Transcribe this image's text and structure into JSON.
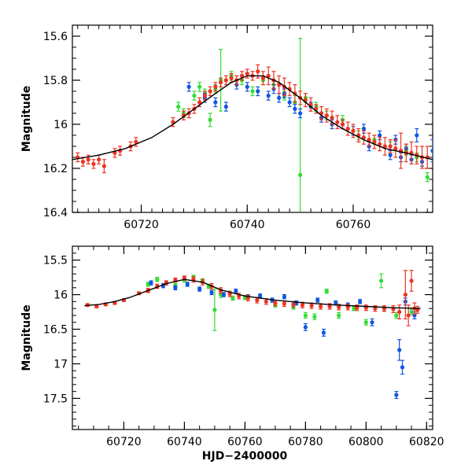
{
  "chart_data": [
    {
      "type": "scatter",
      "panel": "top",
      "xlabel": "",
      "ylabel": "Magnitude",
      "xlim": [
        60707,
        60775
      ],
      "ylim": [
        16.4,
        15.55
      ],
      "y_inverted": true,
      "xticks": [
        60720,
        60740,
        60760
      ],
      "xtick_labels": [
        "60720",
        "60740",
        "60760"
      ],
      "yticks": [
        15.6,
        15.8,
        16.0,
        16.2,
        16.4
      ],
      "ytick_labels": [
        "15.6",
        "15.8",
        "16",
        "16.2",
        "16.4"
      ],
      "colors": {
        "green": "#33dd33",
        "blue": "#1155dd",
        "red": "#ee3322",
        "model": "#000000"
      },
      "model_curve": {
        "x": [
          60707,
          60712,
          60717,
          60722,
          60726,
          60730,
          60734,
          60737,
          60740,
          60743,
          60746,
          60750,
          60754,
          60758,
          60762,
          60766,
          60770,
          60775
        ],
        "y": [
          16.16,
          16.14,
          16.11,
          16.06,
          16.0,
          15.93,
          15.86,
          15.81,
          15.78,
          15.78,
          15.81,
          15.88,
          15.96,
          16.02,
          16.07,
          16.11,
          16.13,
          16.16
        ]
      },
      "series": [
        {
          "color": "green",
          "x": [
            60727,
            60728,
            60730,
            60731,
            60732,
            60733,
            60734,
            60735,
            60737,
            60738,
            60739,
            60741,
            60743,
            60745,
            60747,
            60749,
            60750,
            60751,
            60753,
            60755,
            60758,
            60761,
            60764,
            60767,
            60770,
            60772,
            60774
          ],
          "y": [
            15.92,
            15.95,
            15.87,
            15.83,
            15.86,
            15.98,
            15.84,
            15.8,
            15.78,
            15.8,
            15.8,
            15.85,
            15.8,
            15.82,
            15.87,
            15.9,
            16.23,
            15.88,
            15.92,
            15.96,
            15.98,
            16.05,
            16.07,
            16.1,
            16.12,
            16.15,
            16.24
          ],
          "yerr": [
            0.02,
            0.02,
            0.02,
            0.02,
            0.02,
            0.03,
            0.02,
            0.14,
            0.02,
            0.02,
            0.02,
            0.02,
            0.02,
            0.02,
            0.02,
            0.03,
            0.62,
            0.02,
            0.02,
            0.02,
            0.02,
            0.02,
            0.02,
            0.02,
            0.02,
            0.02,
            0.02
          ]
        },
        {
          "color": "blue",
          "x": [
            60729,
            60732,
            60734,
            60736,
            60738,
            60740,
            60742,
            60744,
            60745,
            60746,
            60747,
            60748,
            60749,
            60750,
            60752,
            60754,
            60756,
            60758,
            60760,
            60762,
            60763,
            60765,
            60767,
            60768,
            60769,
            60770,
            60771,
            60772,
            60773,
            60775
          ],
          "y": [
            15.83,
            15.88,
            15.9,
            15.92,
            15.82,
            15.83,
            15.85,
            15.87,
            15.84,
            15.88,
            15.86,
            15.9,
            15.93,
            15.95,
            15.92,
            15.97,
            16.0,
            16.0,
            16.03,
            16.02,
            16.1,
            16.05,
            16.14,
            16.07,
            16.15,
            16.11,
            16.16,
            16.05,
            16.17,
            16.12
          ],
          "yerr": [
            0.02,
            0.02,
            0.02,
            0.02,
            0.02,
            0.02,
            0.02,
            0.02,
            0.02,
            0.02,
            0.02,
            0.02,
            0.02,
            0.02,
            0.02,
            0.02,
            0.02,
            0.02,
            0.02,
            0.02,
            0.02,
            0.02,
            0.02,
            0.02,
            0.02,
            0.02,
            0.02,
            0.03,
            0.02,
            0.05
          ]
        },
        {
          "color": "red",
          "x": [
            60708,
            60709,
            60710,
            60711,
            60712,
            60713,
            60715,
            60716,
            60718,
            60719,
            60726,
            60728,
            60729,
            60730,
            60731,
            60732,
            60733,
            60734,
            60735,
            60736,
            60737,
            60738,
            60739,
            60740,
            60741,
            60742,
            60743,
            60744,
            60745,
            60746,
            60747,
            60748,
            60749,
            60750,
            60751,
            60752,
            60753,
            60754,
            60755,
            60756,
            60757,
            60758,
            60759,
            60760,
            60761,
            60762,
            60763,
            60764,
            60765,
            60766,
            60767,
            60768,
            60769,
            60770,
            60771,
            60772,
            60773,
            60774
          ],
          "y": [
            16.15,
            16.17,
            16.16,
            16.18,
            16.16,
            16.19,
            16.13,
            16.12,
            16.1,
            16.08,
            15.99,
            15.96,
            15.95,
            15.93,
            15.9,
            15.87,
            15.85,
            15.83,
            15.81,
            15.8,
            15.79,
            15.8,
            15.78,
            15.77,
            15.78,
            15.76,
            15.79,
            15.78,
            15.8,
            15.82,
            15.83,
            15.84,
            15.86,
            15.88,
            15.89,
            15.91,
            15.93,
            15.95,
            15.96,
            15.97,
            15.99,
            16.0,
            16.02,
            16.03,
            16.05,
            16.06,
            16.07,
            16.08,
            16.09,
            16.1,
            16.1,
            16.11,
            16.12,
            16.13,
            16.13,
            16.14,
            16.15,
            16.15
          ],
          "yerr": [
            0.02,
            0.02,
            0.02,
            0.02,
            0.02,
            0.03,
            0.02,
            0.02,
            0.02,
            0.02,
            0.02,
            0.02,
            0.02,
            0.02,
            0.02,
            0.02,
            0.02,
            0.02,
            0.02,
            0.02,
            0.02,
            0.02,
            0.02,
            0.02,
            0.02,
            0.03,
            0.03,
            0.04,
            0.04,
            0.04,
            0.04,
            0.03,
            0.04,
            0.03,
            0.03,
            0.03,
            0.02,
            0.03,
            0.03,
            0.03,
            0.03,
            0.02,
            0.03,
            0.03,
            0.03,
            0.03,
            0.03,
            0.03,
            0.03,
            0.04,
            0.03,
            0.04,
            0.08,
            0.04,
            0.05,
            0.04,
            0.05,
            0.05
          ]
        }
      ]
    },
    {
      "type": "scatter",
      "panel": "bottom",
      "xlabel": "HJD−2400000",
      "ylabel": "Magnitude",
      "xlim": [
        60703,
        60822
      ],
      "ylim": [
        17.95,
        15.3
      ],
      "y_inverted": true,
      "xticks": [
        60720,
        60740,
        60760,
        60780,
        60800,
        60820
      ],
      "xtick_labels": [
        "60720",
        "60740",
        "60760",
        "60780",
        "60800",
        "60820"
      ],
      "yticks": [
        15.5,
        16.0,
        16.5,
        17.0,
        17.5
      ],
      "ytick_labels": [
        "15.5",
        "16",
        "16.5",
        "17",
        "17.5"
      ],
      "colors": {
        "green": "#33dd33",
        "blue": "#1155dd",
        "red": "#ee3322",
        "model": "#000000"
      },
      "model_curve": {
        "x": [
          60707,
          60712,
          60717,
          60722,
          60728,
          60734,
          60740,
          60746,
          60752,
          60760,
          60770,
          60780,
          60790,
          60800,
          60810,
          60818
        ],
        "y": [
          16.16,
          16.14,
          16.1,
          16.04,
          15.94,
          15.84,
          15.78,
          15.82,
          15.93,
          16.02,
          16.08,
          16.12,
          16.15,
          16.17,
          16.19,
          16.2
        ]
      },
      "series": [
        {
          "color": "green",
          "x": [
            60728,
            60731,
            60734,
            60737,
            60740,
            60743,
            60746,
            60748,
            60750,
            60752,
            60756,
            60760,
            60765,
            60770,
            60776,
            60780,
            60783,
            60787,
            60791,
            60796,
            60800,
            60805,
            60810,
            60815
          ],
          "y": [
            15.85,
            15.78,
            15.83,
            15.87,
            15.79,
            15.75,
            15.8,
            15.88,
            16.22,
            16.0,
            16.05,
            16.04,
            16.02,
            16.15,
            16.18,
            16.3,
            16.32,
            15.95,
            16.3,
            16.2,
            16.4,
            15.8,
            16.3,
            16.25
          ],
          "yerr": [
            0.03,
            0.03,
            0.03,
            0.03,
            0.03,
            0.03,
            0.03,
            0.03,
            0.3,
            0.04,
            0.03,
            0.03,
            0.03,
            0.03,
            0.03,
            0.04,
            0.04,
            0.03,
            0.04,
            0.03,
            0.04,
            0.1,
            0.04,
            0.04
          ]
        },
        {
          "color": "blue",
          "x": [
            60729,
            60733,
            60737,
            60741,
            60745,
            60749,
            60753,
            60757,
            60761,
            60765,
            60769,
            60773,
            60777,
            60780,
            60784,
            60786,
            60790,
            60794,
            60798,
            60802,
            60806,
            60810,
            60811,
            60812,
            60813,
            60816
          ],
          "y": [
            15.83,
            15.87,
            15.9,
            15.85,
            15.92,
            15.97,
            16.0,
            15.95,
            16.03,
            16.02,
            16.08,
            16.03,
            16.12,
            16.47,
            16.08,
            16.55,
            16.12,
            16.15,
            16.1,
            16.4,
            16.2,
            17.45,
            16.8,
            17.05,
            16.1,
            16.3
          ],
          "yerr": [
            0.03,
            0.03,
            0.03,
            0.03,
            0.03,
            0.03,
            0.03,
            0.03,
            0.03,
            0.03,
            0.03,
            0.03,
            0.03,
            0.05,
            0.03,
            0.05,
            0.03,
            0.03,
            0.03,
            0.05,
            0.04,
            0.05,
            0.15,
            0.1,
            0.05,
            0.05
          ]
        },
        {
          "color": "red",
          "x": [
            60708,
            60711,
            60714,
            60717,
            60720,
            60725,
            60728,
            60731,
            60734,
            60737,
            60740,
            60743,
            60746,
            60749,
            60752,
            60755,
            60758,
            60761,
            60764,
            60767,
            60770,
            60773,
            60776,
            60779,
            60782,
            60785,
            60788,
            60791,
            60794,
            60797,
            60800,
            60803,
            60806,
            60809,
            60811,
            60813,
            60814,
            60815,
            60816,
            60817
          ],
          "y": [
            16.15,
            16.17,
            16.14,
            16.12,
            16.08,
            15.98,
            15.94,
            15.88,
            15.83,
            15.79,
            15.76,
            15.78,
            15.82,
            15.88,
            15.94,
            15.99,
            16.02,
            16.05,
            16.08,
            16.1,
            16.12,
            16.13,
            16.14,
            16.15,
            16.16,
            16.17,
            16.17,
            16.18,
            16.18,
            16.19,
            16.19,
            16.2,
            16.2,
            16.21,
            16.25,
            16.0,
            16.3,
            15.8,
            16.2,
            16.22
          ],
          "yerr": [
            0.02,
            0.02,
            0.02,
            0.02,
            0.02,
            0.02,
            0.03,
            0.03,
            0.03,
            0.03,
            0.03,
            0.04,
            0.04,
            0.04,
            0.04,
            0.04,
            0.04,
            0.04,
            0.04,
            0.04,
            0.04,
            0.04,
            0.04,
            0.04,
            0.04,
            0.04,
            0.04,
            0.04,
            0.04,
            0.04,
            0.04,
            0.04,
            0.04,
            0.05,
            0.1,
            0.35,
            0.15,
            0.15,
            0.08,
            0.05
          ]
        }
      ]
    }
  ]
}
